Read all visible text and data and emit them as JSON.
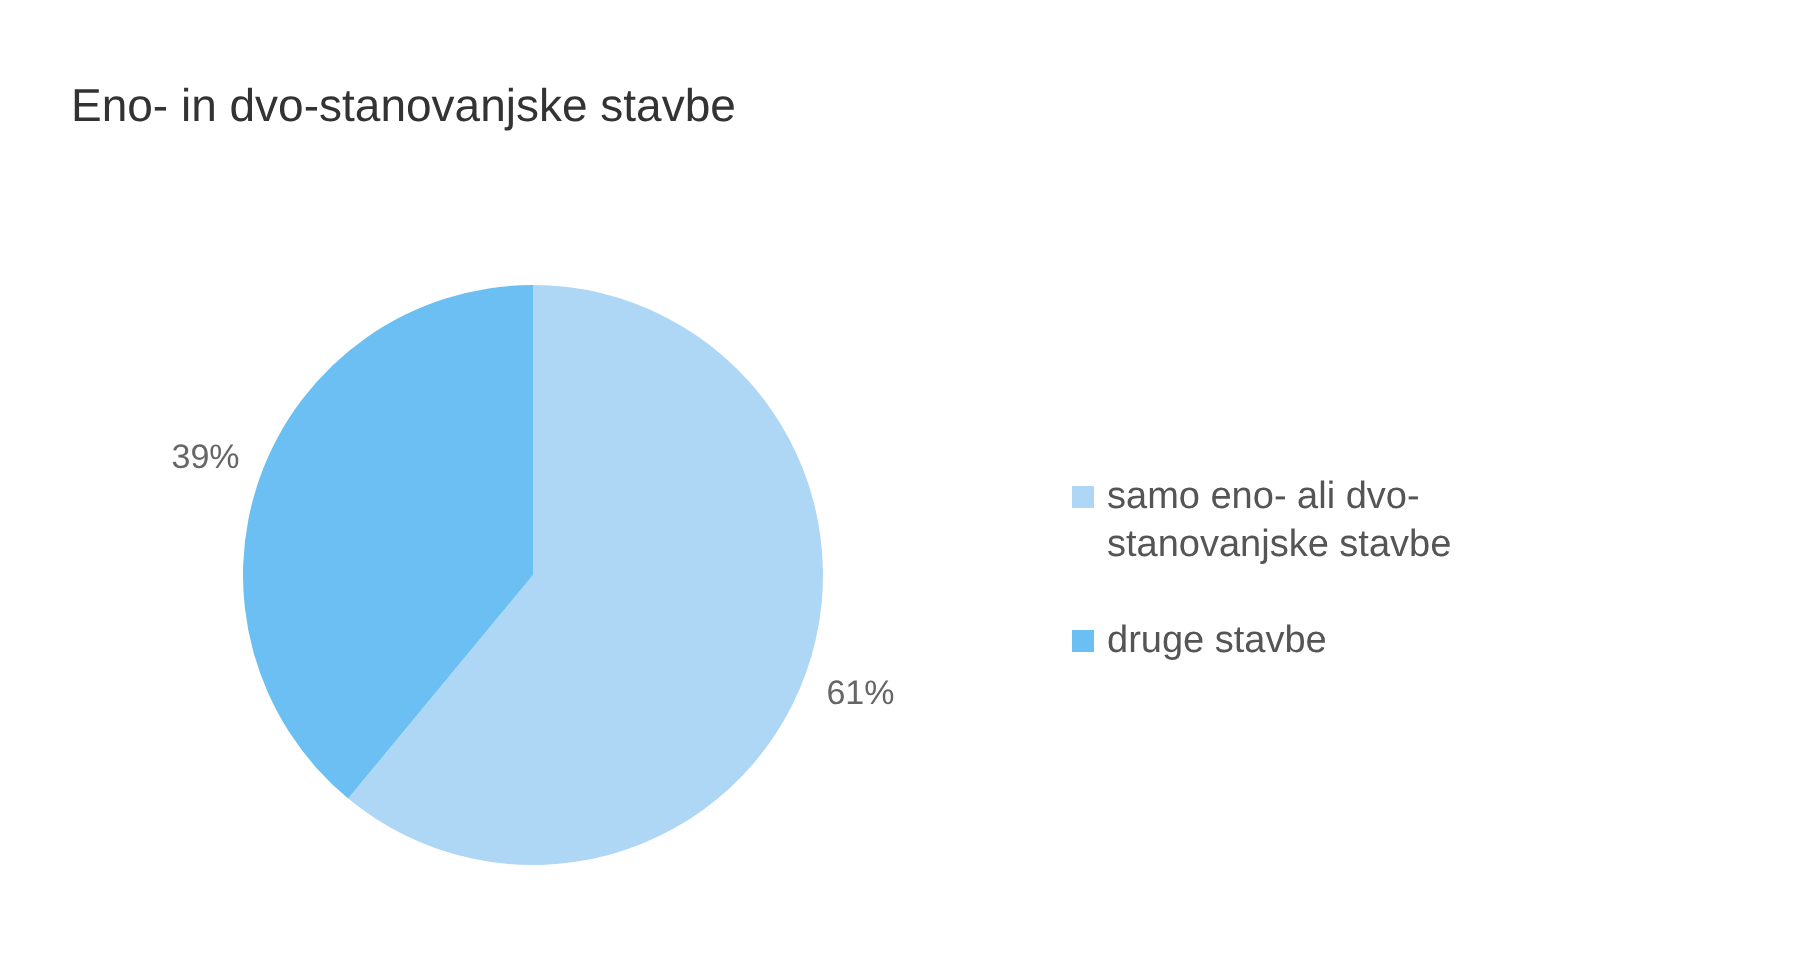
{
  "chart_data": {
    "type": "pie",
    "title": "Eno- in dvo-stanovanjske stavbe",
    "categories": [
      "samo eno- ali dvo-stanovanjske stavbe",
      "druge stavbe"
    ],
    "values": [
      61,
      39
    ],
    "value_labels": [
      "61%",
      "39%"
    ],
    "colors": [
      "#aed6f5",
      "#6bbff2"
    ],
    "legend": "right"
  }
}
